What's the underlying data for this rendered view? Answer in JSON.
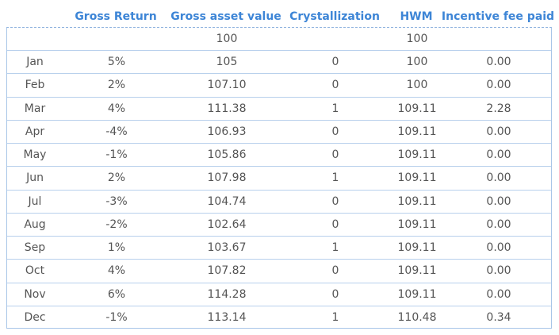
{
  "table": {
    "headers": [
      "Gross Return",
      "Gross asset value",
      "Crystallization",
      "HWM",
      "Incentive fee paid"
    ],
    "initial": {
      "gross_asset_value": "100",
      "hwm": "100"
    },
    "rows": [
      [
        "Jan",
        "5%",
        "105",
        "0",
        "100",
        "0.00"
      ],
      [
        "Feb",
        "2%",
        "107.10",
        "0",
        "100",
        "0.00"
      ],
      [
        "Mar",
        "4%",
        "111.38",
        "1",
        "109.11",
        "2.28"
      ],
      [
        "Apr",
        "-4%",
        "106.93",
        "0",
        "109.11",
        "0.00"
      ],
      [
        "May",
        "-1%",
        "105.86",
        "0",
        "109.11",
        "0.00"
      ],
      [
        "Jun",
        "2%",
        "107.98",
        "1",
        "109.11",
        "0.00"
      ],
      [
        "Jul",
        "-3%",
        "104.74",
        "0",
        "109.11",
        "0.00"
      ],
      [
        "Aug",
        "-2%",
        "102.64",
        "0",
        "109.11",
        "0.00"
      ],
      [
        "Sep",
        "1%",
        "103.67",
        "1",
        "109.11",
        "0.00"
      ],
      [
        "Oct",
        "4%",
        "107.82",
        "0",
        "109.11",
        "0.00"
      ],
      [
        "Nov",
        "6%",
        "114.28",
        "0",
        "109.11",
        "0.00"
      ],
      [
        "Dec",
        "-1%",
        "113.14",
        "1",
        "110.48",
        "0.34"
      ]
    ]
  }
}
